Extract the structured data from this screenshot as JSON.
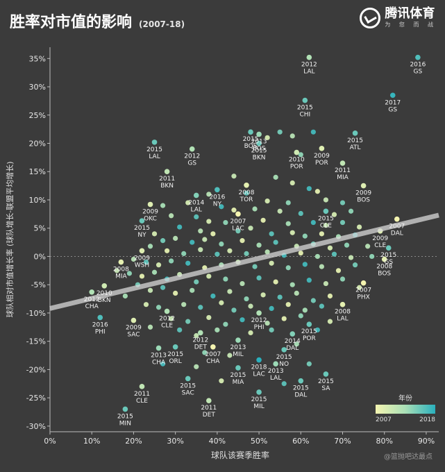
{
  "header": {
    "title": "胜率对市值的影响",
    "subtitle": "(2007-18)"
  },
  "logo": {
    "name": "腾讯体育",
    "slogan": "为 您 而 战"
  },
  "watermark": "@篮抛吧达最点",
  "colors": {
    "background": "#3b3b3b",
    "early": "#f4f4b0",
    "late": "#2ab0bd",
    "trend": "#cfcfcf"
  },
  "chart_data": {
    "type": "scatter",
    "xlabel": "球队该赛季胜率",
    "ylabel": "球队相对市值增长率 (球队增长-联盟平均增长)",
    "xlim": [
      0,
      0.93
    ],
    "ylim": [
      -0.31,
      0.37
    ],
    "xticks": [
      0,
      0.1,
      0.2,
      0.3,
      0.4,
      0.5,
      0.6,
      0.7,
      0.8,
      0.9
    ],
    "xtick_labels": [
      "0%",
      "10%",
      "20%",
      "30%",
      "40%",
      "50%",
      "60%",
      "70%",
      "80%",
      "90%"
    ],
    "yticks": [
      -0.3,
      -0.25,
      -0.2,
      -0.15,
      -0.1,
      -0.05,
      0,
      0.05,
      0.1,
      0.15,
      0.2,
      0.25,
      0.3,
      0.35
    ],
    "ytick_labels": [
      "-30%",
      "-25%",
      "-20%",
      "-15%",
      "-10%",
      "-5%",
      "0%",
      "5%",
      "10%",
      "15%",
      "20%",
      "25%",
      "30%",
      "35%"
    ],
    "trend_line": {
      "x": [
        0,
        0.93
      ],
      "y": [
        -0.092,
        0.073
      ]
    },
    "legend": {
      "title": "年份",
      "min_label": "2007",
      "max_label": "2018",
      "position": "bottom-right"
    },
    "labeled_points": [
      {
        "x": 0.62,
        "y": 0.352,
        "year": "2012",
        "team": "LAL",
        "t": 0.45
      },
      {
        "x": 0.88,
        "y": 0.352,
        "year": "2016",
        "team": "GS",
        "t": 0.85
      },
      {
        "x": 0.61,
        "y": 0.276,
        "year": "2015",
        "team": "CHI",
        "t": 0.75
      },
      {
        "x": 0.82,
        "y": 0.285,
        "year": "2017",
        "team": "GS",
        "t": 0.95
      },
      {
        "x": 0.73,
        "y": 0.218,
        "year": "2015",
        "team": "ATL",
        "t": 0.75
      },
      {
        "x": 0.48,
        "y": 0.22,
        "year": "2015",
        "team": "BOS",
        "t": 0.75
      },
      {
        "x": 0.5,
        "y": 0.216,
        "year": "2013",
        "team": "BOS",
        "t": 0.55
      },
      {
        "x": 0.25,
        "y": 0.202,
        "year": "2015",
        "team": "LAL",
        "t": 0.75
      },
      {
        "x": 0.34,
        "y": 0.19,
        "year": "2012",
        "team": "GS",
        "t": 0.45
      },
      {
        "x": 0.5,
        "y": 0.2,
        "year": "2015",
        "team": "BKN",
        "t": 0.75
      },
      {
        "x": 0.59,
        "y": 0.184,
        "year": "2010",
        "team": "POR",
        "t": 0.25
      },
      {
        "x": 0.65,
        "y": 0.191,
        "year": "2009",
        "team": "POR",
        "t": 0.15
      },
      {
        "x": 0.7,
        "y": 0.165,
        "year": "2011",
        "team": "MIA",
        "t": 0.35
      },
      {
        "x": 0.28,
        "y": 0.15,
        "year": "2011",
        "team": "BKN",
        "t": 0.35
      },
      {
        "x": 0.47,
        "y": 0.126,
        "year": "2008",
        "team": "TOR",
        "t": 0.1
      },
      {
        "x": 0.4,
        "y": 0.118,
        "year": "2016",
        "team": "NY",
        "t": 0.85
      },
      {
        "x": 0.35,
        "y": 0.108,
        "year": "2014",
        "team": "LAL",
        "t": 0.65
      },
      {
        "x": 0.75,
        "y": 0.125,
        "year": "2009",
        "team": "BOS",
        "t": 0.15
      },
      {
        "x": 0.24,
        "y": 0.092,
        "year": "2009",
        "team": "OKC",
        "t": 0.15
      },
      {
        "x": 0.22,
        "y": 0.063,
        "year": "2015",
        "team": "NY",
        "t": 0.75
      },
      {
        "x": 0.45,
        "y": 0.075,
        "year": "2007",
        "team": "LAC",
        "t": 0.0
      },
      {
        "x": 0.66,
        "y": 0.08,
        "year": "2015",
        "team": "CLE",
        "t": 0.75
      },
      {
        "x": 0.83,
        "y": 0.066,
        "year": "2007",
        "team": "DAL",
        "t": 0.0
      },
      {
        "x": 0.79,
        "y": 0.045,
        "year": "2009",
        "team": "CLE",
        "t": 0.15
      },
      {
        "x": 0.22,
        "y": 0.01,
        "year": "2009",
        "team": "WSH",
        "t": 0.15
      },
      {
        "x": 0.81,
        "y": 0.015,
        "year": "2015",
        "team": "GS",
        "t": 0.75
      },
      {
        "x": 0.17,
        "y": -0.01,
        "year": "2008",
        "team": "MIA",
        "t": 0.1
      },
      {
        "x": 0.8,
        "y": -0.005,
        "year": "2008",
        "team": "BOS",
        "t": 0.1
      },
      {
        "x": 0.13,
        "y": -0.052,
        "year": "2010",
        "team": "BKN",
        "t": 0.25
      },
      {
        "x": 0.1,
        "y": -0.063,
        "year": "2012",
        "team": "CHA",
        "t": 0.45
      },
      {
        "x": 0.75,
        "y": -0.047,
        "year": "2007",
        "team": "PHX",
        "t": 0.0
      },
      {
        "x": 0.7,
        "y": -0.085,
        "year": "2008",
        "team": "LAL",
        "t": 0.1
      },
      {
        "x": 0.12,
        "y": -0.108,
        "year": "2016",
        "team": "PHI",
        "t": 0.85
      },
      {
        "x": 0.28,
        "y": -0.097,
        "year": "2012",
        "team": "CLE",
        "t": 0.45
      },
      {
        "x": 0.5,
        "y": -0.1,
        "year": "2012",
        "team": "PHI",
        "t": 0.45
      },
      {
        "x": 0.2,
        "y": -0.113,
        "year": "2009",
        "team": "SAC",
        "t": 0.15
      },
      {
        "x": 0.36,
        "y": -0.135,
        "year": "2012",
        "team": "DET",
        "t": 0.45
      },
      {
        "x": 0.45,
        "y": -0.148,
        "year": "2013",
        "team": "MIL",
        "t": 0.55
      },
      {
        "x": 0.58,
        "y": -0.137,
        "year": "2014",
        "team": "DAL",
        "t": 0.65
      },
      {
        "x": 0.62,
        "y": -0.12,
        "year": "2015",
        "team": "POR",
        "t": 0.75
      },
      {
        "x": 0.26,
        "y": -0.162,
        "year": "2013",
        "team": "CHA",
        "t": 0.55
      },
      {
        "x": 0.3,
        "y": -0.16,
        "year": "2015",
        "team": "ORL",
        "t": 0.75
      },
      {
        "x": 0.39,
        "y": -0.16,
        "year": "2007",
        "team": "CHA",
        "t": 0.0
      },
      {
        "x": 0.56,
        "y": -0.165,
        "year": "2015",
        "team": "NO",
        "t": 0.75
      },
      {
        "x": 0.5,
        "y": -0.183,
        "year": "2018",
        "team": "LAC",
        "t": 1.0
      },
      {
        "x": 0.54,
        "y": -0.19,
        "year": "2013",
        "team": "LAL",
        "t": 0.55
      },
      {
        "x": 0.45,
        "y": -0.197,
        "year": "2015",
        "team": "MIA",
        "t": 0.75
      },
      {
        "x": 0.6,
        "y": -0.22,
        "year": "2015",
        "team": "DAL",
        "t": 0.75
      },
      {
        "x": 0.66,
        "y": -0.208,
        "year": "2015",
        "team": "SA",
        "t": 0.75
      },
      {
        "x": 0.22,
        "y": -0.23,
        "year": "2011",
        "team": "CLE",
        "t": 0.35
      },
      {
        "x": 0.33,
        "y": -0.216,
        "year": "2015",
        "team": "SAC",
        "t": 0.75
      },
      {
        "x": 0.18,
        "y": -0.27,
        "year": "2015",
        "team": "MIN",
        "t": 0.75
      },
      {
        "x": 0.38,
        "y": -0.255,
        "year": "2011",
        "team": "DET",
        "t": 0.35
      },
      {
        "x": 0.5,
        "y": -0.24,
        "year": "2015",
        "team": "MIL",
        "t": 0.75
      }
    ],
    "cloud": [
      [
        0.55,
        0.22,
        0.7
      ],
      [
        0.63,
        0.22,
        0.9
      ],
      [
        0.58,
        0.213,
        0.4
      ],
      [
        0.52,
        0.21,
        0.2
      ],
      [
        0.6,
        0.18,
        0.6
      ],
      [
        0.44,
        0.142,
        0.3
      ],
      [
        0.54,
        0.14,
        0.5
      ],
      [
        0.58,
        0.13,
        0.2
      ],
      [
        0.62,
        0.12,
        0.9
      ],
      [
        0.64,
        0.115,
        0.1
      ],
      [
        0.38,
        0.11,
        0.4
      ],
      [
        0.47,
        0.112,
        0.8
      ],
      [
        0.52,
        0.098,
        0.2
      ],
      [
        0.57,
        0.095,
        0.6
      ],
      [
        0.66,
        0.1,
        0.3
      ],
      [
        0.7,
        0.095,
        0.7
      ],
      [
        0.27,
        0.09,
        0.5
      ],
      [
        0.33,
        0.095,
        0.2
      ],
      [
        0.41,
        0.088,
        0.9
      ],
      [
        0.44,
        0.082,
        0.1
      ],
      [
        0.49,
        0.084,
        0.5
      ],
      [
        0.55,
        0.08,
        0.3
      ],
      [
        0.6,
        0.076,
        0.8
      ],
      [
        0.68,
        0.074,
        0.2
      ],
      [
        0.72,
        0.08,
        0.6
      ],
      [
        0.29,
        0.072,
        0.4
      ],
      [
        0.35,
        0.07,
        0.8
      ],
      [
        0.38,
        0.062,
        0.2
      ],
      [
        0.42,
        0.06,
        0.6
      ],
      [
        0.51,
        0.064,
        0.1
      ],
      [
        0.57,
        0.058,
        0.5
      ],
      [
        0.63,
        0.06,
        0.9
      ],
      [
        0.66,
        0.055,
        0.3
      ],
      [
        0.7,
        0.06,
        0.7
      ],
      [
        0.74,
        0.052,
        0.2
      ],
      [
        0.31,
        0.052,
        0.9
      ],
      [
        0.36,
        0.045,
        0.4
      ],
      [
        0.39,
        0.04,
        0.1
      ],
      [
        0.45,
        0.045,
        0.7
      ],
      [
        0.48,
        0.05,
        0.3
      ],
      [
        0.53,
        0.04,
        0.8
      ],
      [
        0.58,
        0.042,
        0.2
      ],
      [
        0.61,
        0.036,
        0.6
      ],
      [
        0.65,
        0.04,
        0.1
      ],
      [
        0.69,
        0.035,
        0.5
      ],
      [
        0.73,
        0.038,
        0.9
      ],
      [
        0.25,
        0.04,
        0.2
      ],
      [
        0.27,
        0.028,
        0.7
      ],
      [
        0.3,
        0.032,
        0.4
      ],
      [
        0.34,
        0.025,
        0.9
      ],
      [
        0.37,
        0.03,
        0.3
      ],
      [
        0.41,
        0.022,
        0.6
      ],
      [
        0.46,
        0.028,
        0.1
      ],
      [
        0.5,
        0.02,
        0.5
      ],
      [
        0.54,
        0.025,
        0.8
      ],
      [
        0.59,
        0.018,
        0.3
      ],
      [
        0.63,
        0.022,
        0.7
      ],
      [
        0.67,
        0.015,
        0.2
      ],
      [
        0.71,
        0.02,
        0.6
      ],
      [
        0.76,
        0.018,
        0.4
      ],
      [
        0.24,
        0.018,
        0.5
      ],
      [
        0.28,
        0.01,
        0.1
      ],
      [
        0.32,
        0.005,
        0.6
      ],
      [
        0.36,
        0.012,
        0.3
      ],
      [
        0.4,
        0.004,
        0.8
      ],
      [
        0.43,
        0.01,
        0.2
      ],
      [
        0.47,
        0.005,
        0.7
      ],
      [
        0.52,
        0.008,
        0.4
      ],
      [
        0.56,
        0.002,
        0.9
      ],
      [
        0.6,
        0.006,
        0.1
      ],
      [
        0.64,
        0.0,
        0.5
      ],
      [
        0.68,
        0.004,
        0.8
      ],
      [
        0.72,
        -0.002,
        0.3
      ],
      [
        0.77,
        0.0,
        0.6
      ],
      [
        0.2,
        -0.005,
        0.4
      ],
      [
        0.23,
        -0.01,
        0.8
      ],
      [
        0.26,
        -0.015,
        0.2
      ],
      [
        0.29,
        -0.008,
        0.6
      ],
      [
        0.33,
        -0.012,
        0.9
      ],
      [
        0.37,
        -0.02,
        0.1
      ],
      [
        0.41,
        -0.015,
        0.5
      ],
      [
        0.45,
        -0.01,
        0.3
      ],
      [
        0.49,
        -0.018,
        0.7
      ],
      [
        0.53,
        -0.012,
        0.2
      ],
      [
        0.57,
        -0.02,
        0.6
      ],
      [
        0.61,
        -0.014,
        0.9
      ],
      [
        0.65,
        -0.018,
        0.4
      ],
      [
        0.69,
        -0.025,
        0.1
      ],
      [
        0.73,
        -0.015,
        0.7
      ],
      [
        0.16,
        -0.025,
        0.3
      ],
      [
        0.19,
        -0.03,
        0.6
      ],
      [
        0.22,
        -0.035,
        0.1
      ],
      [
        0.25,
        -0.028,
        0.5
      ],
      [
        0.28,
        -0.04,
        0.9
      ],
      [
        0.31,
        -0.032,
        0.3
      ],
      [
        0.35,
        -0.045,
        0.7
      ],
      [
        0.38,
        -0.035,
        0.2
      ],
      [
        0.42,
        -0.04,
        0.6
      ],
      [
        0.46,
        -0.048,
        0.4
      ],
      [
        0.5,
        -0.038,
        0.8
      ],
      [
        0.54,
        -0.045,
        0.1
      ],
      [
        0.58,
        -0.05,
        0.5
      ],
      [
        0.62,
        -0.042,
        0.9
      ],
      [
        0.66,
        -0.048,
        0.3
      ],
      [
        0.7,
        -0.04,
        0.6
      ],
      [
        0.74,
        -0.055,
        0.2
      ],
      [
        0.21,
        -0.05,
        0.7
      ],
      [
        0.24,
        -0.06,
        0.3
      ],
      [
        0.27,
        -0.055,
        0.8
      ],
      [
        0.3,
        -0.065,
        0.1
      ],
      [
        0.34,
        -0.06,
        0.5
      ],
      [
        0.39,
        -0.07,
        0.9
      ],
      [
        0.43,
        -0.062,
        0.3
      ],
      [
        0.47,
        -0.075,
        0.6
      ],
      [
        0.51,
        -0.068,
        0.2
      ],
      [
        0.55,
        -0.072,
        0.8
      ],
      [
        0.59,
        -0.065,
        0.4
      ],
      [
        0.63,
        -0.078,
        0.7
      ],
      [
        0.67,
        -0.07,
        0.1
      ],
      [
        0.18,
        -0.07,
        0.5
      ],
      [
        0.23,
        -0.085,
        0.2
      ],
      [
        0.26,
        -0.09,
        0.6
      ],
      [
        0.32,
        -0.085,
        0.4
      ],
      [
        0.36,
        -0.09,
        0.8
      ],
      [
        0.41,
        -0.082,
        0.2
      ],
      [
        0.44,
        -0.095,
        0.7
      ],
      [
        0.48,
        -0.088,
        0.3
      ],
      [
        0.53,
        -0.092,
        0.9
      ],
      [
        0.57,
        -0.085,
        0.1
      ],
      [
        0.61,
        -0.095,
        0.5
      ],
      [
        0.65,
        -0.088,
        0.8
      ],
      [
        0.29,
        -0.11,
        0.3
      ],
      [
        0.33,
        -0.115,
        0.7
      ],
      [
        0.38,
        -0.108,
        0.2
      ],
      [
        0.42,
        -0.12,
        0.6
      ],
      [
        0.46,
        -0.112,
        0.9
      ],
      [
        0.52,
        -0.118,
        0.4
      ],
      [
        0.56,
        -0.11,
        0.1
      ],
      [
        0.6,
        -0.105,
        0.6
      ],
      [
        0.24,
        -0.125,
        0.4
      ],
      [
        0.31,
        -0.13,
        0.8
      ],
      [
        0.35,
        -0.14,
        0.3
      ],
      [
        0.4,
        -0.13,
        0.5
      ],
      [
        0.48,
        -0.135,
        0.2
      ],
      [
        0.53,
        -0.13,
        0.7
      ],
      [
        0.64,
        -0.13,
        0.9
      ],
      [
        0.67,
        -0.115,
        0.2
      ],
      [
        0.37,
        -0.17,
        0.6
      ],
      [
        0.43,
        -0.175,
        0.3
      ],
      [
        0.59,
        -0.155,
        0.5
      ],
      [
        0.27,
        -0.19,
        0.9
      ],
      [
        0.35,
        -0.195,
        0.4
      ],
      [
        0.62,
        -0.19,
        0.7
      ],
      [
        0.41,
        -0.22,
        0.2
      ],
      [
        0.56,
        -0.225,
        0.8
      ]
    ]
  }
}
